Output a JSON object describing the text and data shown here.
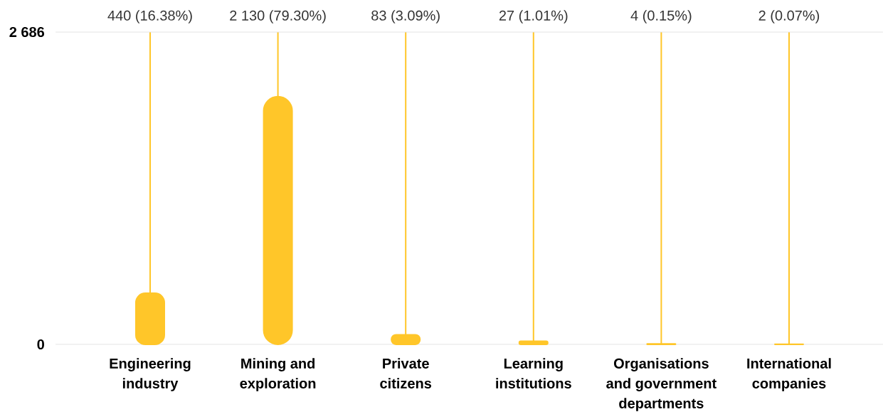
{
  "chart_data": {
    "type": "bar",
    "categories": [
      "Engineering industry",
      "Mining and exploration",
      "Private citizens",
      "Learning institutions",
      "Organisations and government departments",
      "International companies"
    ],
    "values": [
      440,
      2130,
      83,
      27,
      4,
      2
    ],
    "annotations": [
      "440 (16.38%)",
      "2 130 (79.30%)",
      "83 (3.09%)",
      "27 (1.01%)",
      "4 (0.15%)",
      "2 (0.07%)"
    ],
    "color": "#ffc629",
    "ylim": [
      0,
      2686
    ],
    "yticks": [
      0,
      {
        "value": 2686,
        "label": "2 686"
      }
    ],
    "grid": true
  }
}
